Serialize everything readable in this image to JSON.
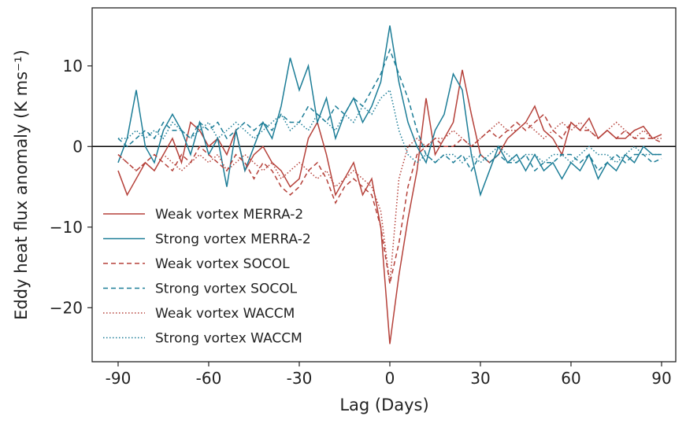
{
  "chart_data": {
    "type": "line",
    "xlabel": "Lag (Days)",
    "ylabel": "Eddy heat flux anomaly (K ms⁻¹)",
    "x": [
      -90,
      -87,
      -84,
      -81,
      -78,
      -75,
      -72,
      -69,
      -66,
      -63,
      -60,
      -57,
      -54,
      -51,
      -48,
      -45,
      -42,
      -39,
      -36,
      -33,
      -30,
      -27,
      -24,
      -21,
      -18,
      -15,
      -12,
      -9,
      -6,
      -3,
      0,
      3,
      6,
      9,
      12,
      15,
      18,
      21,
      24,
      27,
      30,
      33,
      36,
      39,
      42,
      45,
      48,
      51,
      54,
      57,
      60,
      63,
      66,
      69,
      72,
      75,
      78,
      81,
      84,
      87,
      90
    ],
    "xlim": [
      -98.6,
      94.7
    ],
    "xticks": [
      -90,
      -60,
      -30,
      0,
      30,
      60,
      90
    ],
    "ylim": [
      -26.7,
      17.2
    ],
    "yticks": [
      {
        "value": -20,
        "label": "−20"
      },
      {
        "value": -10,
        "label": "−10"
      },
      0,
      10
    ],
    "hline": 0,
    "legend": "lower left",
    "series": [
      {
        "name": "Weak vortex MERRA-2",
        "color": "#b5413a",
        "dash": "solid",
        "values": [
          -3,
          -6,
          -4,
          -2,
          -3,
          -1,
          1,
          -2,
          3,
          2,
          0,
          1,
          -1,
          2,
          -3,
          -1,
          0,
          -2,
          -3,
          -5,
          -4,
          1,
          3,
          -1,
          -6,
          -4,
          -2,
          -6,
          -4,
          -10,
          -24.5,
          -16,
          -9,
          -3,
          6,
          -1,
          1,
          3,
          9.5,
          4,
          -1,
          -2,
          -1,
          1,
          2,
          3,
          5,
          2,
          1,
          -1,
          3,
          2,
          3.5,
          1,
          2,
          1,
          1,
          2,
          2.5,
          1,
          1.5
        ]
      },
      {
        "name": "Strong vortex MERRA-2",
        "color": "#1c7d97",
        "dash": "solid",
        "values": [
          -2,
          1,
          7,
          0,
          -2,
          2,
          4,
          2,
          -1,
          3,
          -1,
          1,
          -5,
          2,
          -3,
          0,
          3,
          1,
          5,
          11,
          7,
          10,
          3,
          6,
          1,
          4,
          6,
          3,
          5,
          8,
          15,
          8,
          3,
          0,
          -2,
          2,
          4,
          9,
          7,
          -1,
          -6,
          -3,
          0,
          -2,
          -1,
          -3,
          -1,
          -3,
          -2,
          -4,
          -2,
          -3,
          -1,
          -4,
          -2,
          -3,
          -1,
          -2,
          0,
          -1,
          -1
        ]
      },
      {
        "name": "Weak vortex SOCOL",
        "color": "#b5413a",
        "dash": "dashed",
        "values": [
          -1,
          -2,
          -3,
          -2,
          -1,
          -2,
          -3,
          -1,
          -2,
          0,
          -1,
          -2,
          -3,
          -1,
          -2,
          -4,
          -2,
          -3,
          -5,
          -6,
          -5,
          -3,
          -2,
          -4,
          -7,
          -5,
          -4,
          -5,
          -6,
          -10,
          -17,
          -12,
          -5,
          -1,
          0,
          1,
          0,
          0,
          1,
          0,
          1,
          2,
          1,
          2,
          3,
          2,
          3,
          4,
          2,
          1,
          3,
          2,
          2,
          1,
          2,
          1,
          2,
          1,
          1,
          1,
          0.5
        ]
      },
      {
        "name": "Strong vortex SOCOL",
        "color": "#1c7d97",
        "dash": "dashed",
        "values": [
          1,
          0,
          1,
          2,
          1,
          3,
          2,
          2,
          1,
          3,
          2,
          3,
          1,
          2,
          3,
          2,
          3,
          2,
          4,
          3,
          3,
          5,
          4,
          3,
          5,
          4,
          6,
          5,
          7,
          9,
          12,
          9,
          6,
          2,
          -1,
          -2,
          -1,
          -2,
          -1,
          -3,
          -1,
          -2,
          -1,
          -2,
          -2,
          -1,
          -3,
          -2,
          -2,
          -1,
          -1,
          -2,
          -1,
          -3,
          -2,
          -1,
          -2,
          -1,
          -1,
          -2,
          -1.5
        ]
      },
      {
        "name": "Weak vortex WACCM",
        "color": "#b5413a",
        "dash": "dotted",
        "values": [
          -1,
          -2,
          -3,
          -2,
          -3,
          -1,
          -2,
          -3,
          -2,
          -1,
          -2,
          -1,
          -3,
          -2,
          -1,
          -2,
          -3,
          -2,
          -4,
          -3,
          -2,
          -3,
          -4,
          -3,
          -5,
          -4,
          -3,
          -4,
          -5,
          -8,
          -17,
          -4,
          0,
          1,
          0,
          1,
          1,
          2,
          1,
          0,
          1,
          2,
          3,
          2,
          2,
          3,
          2,
          1,
          2,
          3,
          2,
          3,
          2,
          1,
          2,
          3,
          2,
          1,
          2,
          1,
          1
        ]
      },
      {
        "name": "Strong vortex WACCM",
        "color": "#1c7d97",
        "dash": "dotted",
        "values": [
          1,
          1,
          2,
          1,
          2,
          1,
          3,
          2,
          1,
          2,
          3,
          1,
          2,
          3,
          2,
          1,
          2,
          3,
          4,
          2,
          3,
          2,
          4,
          3,
          2,
          4,
          3,
          5,
          4,
          6,
          7,
          2,
          -1,
          -2,
          -1,
          -2,
          -1,
          -1,
          -2,
          -1,
          -2,
          -1,
          0,
          -1,
          -2,
          -1,
          -1,
          -2,
          -1,
          -1,
          -2,
          -1,
          0,
          -1,
          -1,
          -2,
          -1,
          0,
          -1,
          -1,
          -1
        ]
      }
    ]
  }
}
